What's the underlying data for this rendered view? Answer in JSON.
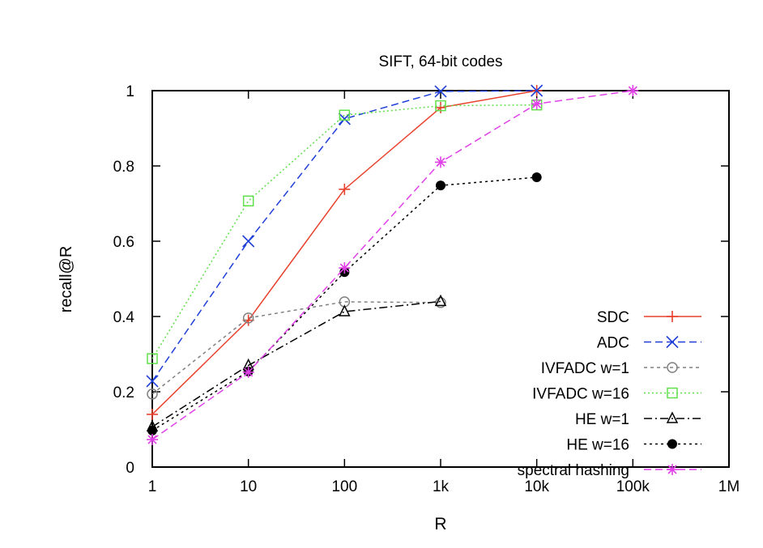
{
  "chart_data": {
    "type": "line",
    "title": "SIFT, 64-bit codes",
    "xlabel": "R",
    "ylabel": "recall@R",
    "xscale": "log",
    "xlim": [
      1,
      1000000
    ],
    "ylim": [
      0,
      1
    ],
    "grid": false,
    "legend_position": "bottom-right",
    "xticks": [
      {
        "v": 1,
        "label": "1"
      },
      {
        "v": 10,
        "label": "10"
      },
      {
        "v": 100,
        "label": "100"
      },
      {
        "v": 1000,
        "label": "1k"
      },
      {
        "v": 10000,
        "label": "10k"
      },
      {
        "v": 100000,
        "label": "100k"
      },
      {
        "v": 1000000,
        "label": "1M"
      }
    ],
    "yticks": [
      {
        "v": 0,
        "label": "0"
      },
      {
        "v": 0.2,
        "label": "0.2"
      },
      {
        "v": 0.4,
        "label": "0.4"
      },
      {
        "v": 0.6,
        "label": "0.6"
      },
      {
        "v": 0.8,
        "label": "0.8"
      },
      {
        "v": 1,
        "label": "1"
      }
    ],
    "series": [
      {
        "name": "SDC",
        "color": "#e8412c",
        "dash": "",
        "marker": "plus",
        "x": [
          1,
          10,
          100,
          1000,
          10000
        ],
        "y": [
          0.14,
          0.39,
          0.738,
          0.955,
          1.0
        ]
      },
      {
        "name": "ADC",
        "color": "#1f3fd8",
        "dash": "9,5",
        "marker": "cross",
        "x": [
          1,
          10,
          100,
          1000,
          10000
        ],
        "y": [
          0.228,
          0.6,
          0.925,
          0.998,
          1.0
        ]
      },
      {
        "name": "IVFADC w=1",
        "color": "#808080",
        "dash": "4,4",
        "marker": "circle",
        "x": [
          1,
          10,
          100,
          1000
        ],
        "y": [
          0.194,
          0.396,
          0.439,
          0.437
        ]
      },
      {
        "name": "IVFADC w=16",
        "color": "#5fe04a",
        "dash": "2,3",
        "marker": "square",
        "x": [
          1,
          10,
          100,
          1000,
          10000
        ],
        "y": [
          0.288,
          0.707,
          0.935,
          0.96,
          0.962
        ]
      },
      {
        "name": "HE w=1",
        "color": "#000000",
        "dash": "10,4,2,4",
        "marker": "triangle",
        "x": [
          1,
          10,
          100,
          1000
        ],
        "y": [
          0.107,
          0.27,
          0.413,
          0.44
        ]
      },
      {
        "name": "HE w=16",
        "color": "#000000",
        "dash": "3,4",
        "marker": "dot",
        "x": [
          1,
          10,
          100,
          1000,
          10000
        ],
        "y": [
          0.097,
          0.254,
          0.518,
          0.748,
          0.77
        ]
      },
      {
        "name": "spectral hashing",
        "color": "#e040e8",
        "dash": "9,5",
        "marker": "star",
        "x": [
          1,
          10,
          100,
          1000,
          10000,
          100000
        ],
        "y": [
          0.073,
          0.252,
          0.529,
          0.81,
          0.965,
          1.0
        ]
      }
    ]
  }
}
